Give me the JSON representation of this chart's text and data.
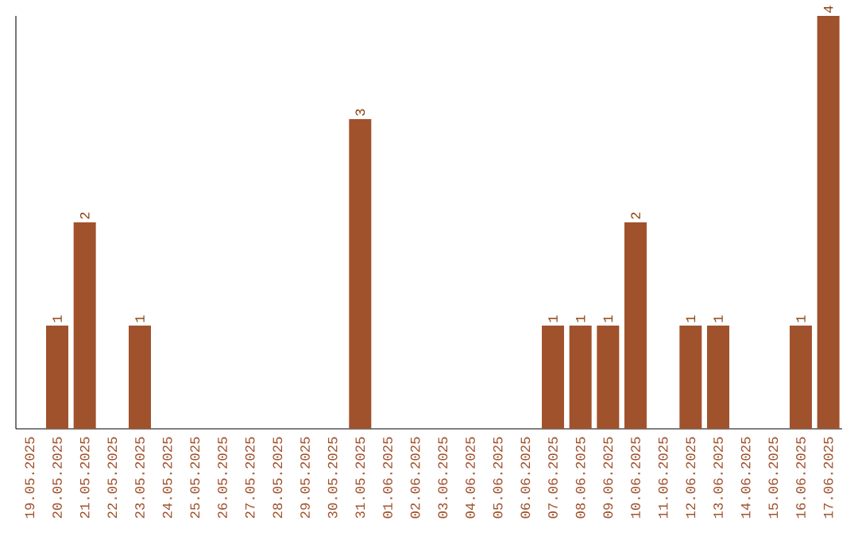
{
  "chart_data": {
    "type": "bar",
    "categories": [
      "19.05.2025",
      "20.05.2025",
      "21.05.2025",
      "22.05.2025",
      "23.05.2025",
      "24.05.2025",
      "25.05.2025",
      "26.05.2025",
      "27.05.2025",
      "28.05.2025",
      "29.05.2025",
      "30.05.2025",
      "31.05.2025",
      "01.06.2025",
      "02.06.2025",
      "03.06.2025",
      "04.06.2025",
      "05.06.2025",
      "06.06.2025",
      "07.06.2025",
      "08.06.2025",
      "09.06.2025",
      "10.06.2025",
      "11.06.2025",
      "12.06.2025",
      "13.06.2025",
      "14.06.2025",
      "15.06.2025",
      "16.06.2025",
      "17.06.2025"
    ],
    "values": [
      0,
      1,
      2,
      0,
      1,
      0,
      0,
      0,
      0,
      0,
      0,
      0,
      3,
      0,
      0,
      0,
      0,
      0,
      0,
      1,
      1,
      1,
      2,
      0,
      1,
      1,
      0,
      0,
      1,
      4
    ],
    "value_labels": [
      null,
      "1",
      "2",
      null,
      "1",
      null,
      null,
      null,
      null,
      null,
      null,
      null,
      "3",
      null,
      null,
      null,
      null,
      null,
      null,
      "1",
      "1",
      "1",
      "2",
      null,
      "1",
      "1",
      null,
      null,
      "1",
      "4"
    ],
    "color": "#a0522d",
    "tick_labels": "x"
  }
}
